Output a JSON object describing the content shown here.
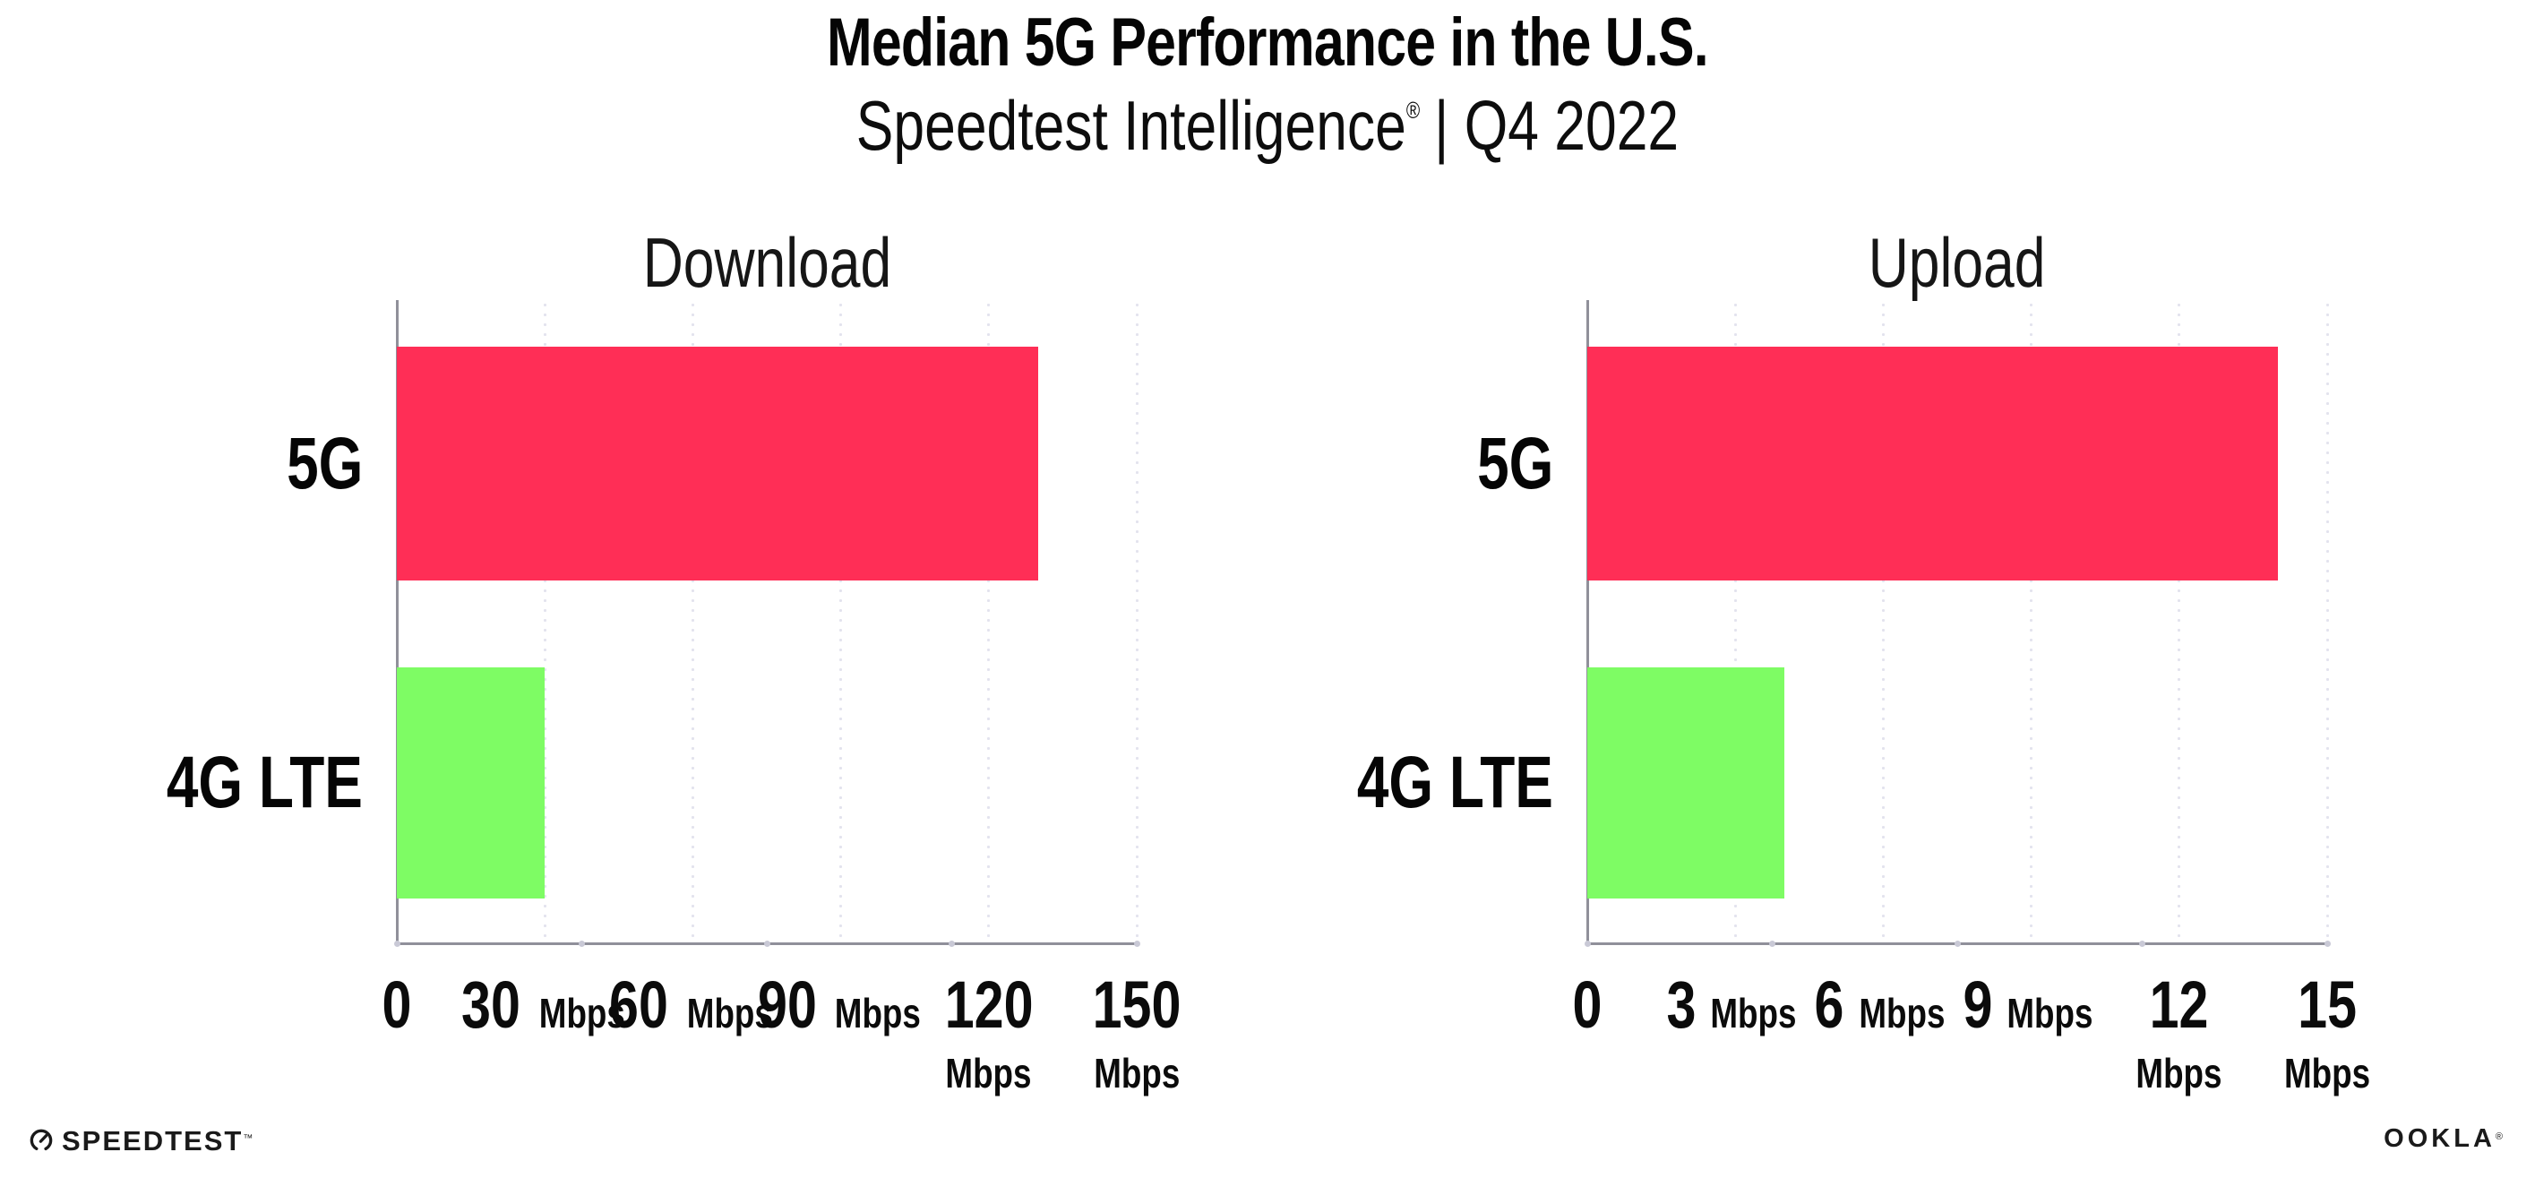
{
  "page": {
    "title": "Median 5G Performance in the U.S."
  },
  "subtitle": {
    "product": "Speedtest Intelligence",
    "registered_mark": "®",
    "rest": "| Q4 2022"
  },
  "chart_data": [
    {
      "type": "bar",
      "orientation": "horizontal",
      "title": "Download",
      "categories": [
        "5G",
        "4G LTE"
      ],
      "values": [
        130,
        30
      ],
      "unit": "Mbps",
      "xlim": [
        0,
        150
      ],
      "xticks": [
        0,
        30,
        60,
        90,
        120,
        150
      ],
      "tick_unit": "Mbps",
      "bar_colors": [
        "#FF2E56",
        "#7EFC64"
      ],
      "grid": "vertical-dotted",
      "legend": "none"
    },
    {
      "type": "bar",
      "orientation": "horizontal",
      "title": "Upload",
      "categories": [
        "5G",
        "4G LTE"
      ],
      "values": [
        14,
        4
      ],
      "unit": "Mbps",
      "xlim": [
        0,
        15
      ],
      "xticks": [
        0,
        3,
        6,
        9,
        12,
        15
      ],
      "tick_unit": "Mbps",
      "bar_colors": [
        "#FF2E56",
        "#7EFC64"
      ],
      "grid": "vertical-dotted",
      "legend": "none"
    }
  ],
  "footer": {
    "speedtest_wordmark": "SPEEDTEST",
    "speedtest_trademark": "™",
    "speedtest_icon": "gauge-icon",
    "ookla_wordmark": "OOKLA",
    "ookla_registered": "®"
  },
  "colors": {
    "bar_5g": "#FF2E56",
    "bar_4g_lte": "#7EFC64",
    "gridline": "#E3E3EE",
    "axis_line": "#90909A",
    "title_text": "#050505"
  }
}
